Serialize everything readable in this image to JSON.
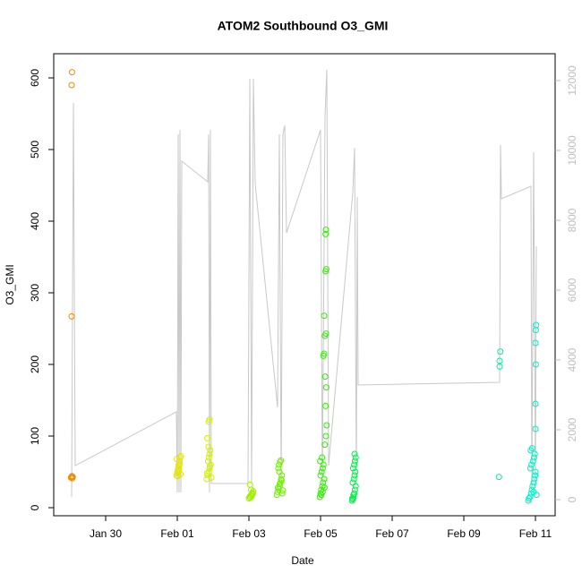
{
  "chart_data": {
    "type": "scatter",
    "title": "ATOM2 Southbound O3_GMI",
    "x_label": "Date",
    "y_label": "O3_GMI",
    "xlim": [
      28.55,
      42.55
    ],
    "xticks": [
      {
        "value": 30,
        "label": "Jan 30"
      },
      {
        "value": 32,
        "label": "Feb 01"
      },
      {
        "value": 34,
        "label": "Feb 03"
      },
      {
        "value": 36,
        "label": "Feb 05"
      },
      {
        "value": 38,
        "label": "Feb 07"
      },
      {
        "value": 40,
        "label": "Feb 09"
      },
      {
        "value": 42,
        "label": "Feb 11"
      }
    ],
    "ylim": [
      -11.25,
      633.75
    ],
    "yticks": [
      0,
      100,
      200,
      300,
      400,
      500,
      600
    ],
    "y2lim": [
      -461.5,
      12769
    ],
    "y2ticks": [
      0,
      2000,
      4000,
      6000,
      8000,
      10000,
      12000
    ],
    "y2_color": "#bebebe",
    "series": [
      {
        "type": "line",
        "axis": "y2",
        "color": "#c8c8c8",
        "x": [
          29.05,
          29.1,
          29.15,
          31.975,
          32.0,
          32.025,
          32.05,
          32.075,
          32.1,
          32.125,
          32.85,
          32.875,
          32.9,
          32.925,
          32.95,
          33.975,
          34.025,
          34.075,
          34.125,
          34.175,
          34.8,
          34.85,
          34.9,
          34.95,
          35.0,
          35.05,
          36.0,
          36.05,
          36.125,
          36.175,
          36.225,
          36.9,
          36.95,
          37.0,
          37.025,
          37.05,
          41.0,
          41.025,
          41.05,
          41.875,
          41.9,
          41.95,
          42.0,
          42.025
        ],
        "values": [
          77,
          11359,
          974,
          2513,
          205,
          10462,
          205,
          10590,
          205,
          9692,
          9103,
          10462,
          205,
          10590,
          462,
          462,
          12051,
          462,
          12051,
          9051,
          2641,
          10462,
          462,
          10462,
          10718,
          7641,
          10590,
          462,
          10974,
          12308,
          974,
          8795,
          10077,
          462,
          8667,
          3282,
          3359,
          10154,
          8615,
          8974,
          333,
          9949,
          333,
          7256
        ]
      },
      {
        "color": "#f08c00",
        "x": [
          29.03,
          29.05,
          29.06,
          29.07,
          29.08,
          29.05,
          29.05,
          29.06
        ],
        "values": [
          42,
          43,
          44,
          41,
          43,
          267,
          590,
          608
        ]
      },
      {
        "color": "#e6e600",
        "x": [
          31.98,
          32.0,
          32.02,
          32.04,
          32.06,
          32.08,
          32.1,
          32.0,
          32.03,
          32.05,
          32.07,
          31.99,
          32.01,
          32.09,
          32.04
        ],
        "values": [
          45,
          50,
          55,
          60,
          65,
          70,
          72,
          48,
          52,
          58,
          62,
          68,
          44,
          47,
          53
        ]
      },
      {
        "color": "#d2f000",
        "x": [
          32.82,
          32.85,
          32.88,
          32.9,
          32.93,
          32.86,
          32.88,
          32.9,
          32.92,
          32.87,
          32.84,
          32.88,
          32.9,
          32.95,
          32.83,
          32.91
        ],
        "values": [
          40,
          45,
          50,
          55,
          60,
          65,
          70,
          75,
          80,
          85,
          97,
          120,
          123,
          42,
          48,
          58
        ]
      },
      {
        "color": "#a0f000",
        "x": [
          34.0,
          34.02,
          34.05,
          34.08,
          34.1,
          34.12,
          34.06,
          34.03,
          34.04,
          34.07,
          34.09,
          34.11
        ],
        "values": [
          13,
          15,
          17,
          19,
          21,
          23,
          25,
          32,
          14,
          16,
          18,
          20
        ]
      },
      {
        "color": "#6ef000",
        "x": [
          34.78,
          34.8,
          34.83,
          34.86,
          34.88,
          34.9,
          34.92,
          34.85,
          34.82,
          34.84,
          34.87,
          34.89,
          34.93,
          34.95,
          34.81,
          34.86,
          34.91
        ],
        "values": [
          18,
          22,
          26,
          30,
          35,
          40,
          45,
          50,
          55,
          60,
          64,
          66,
          20,
          24,
          28,
          33,
          38
        ]
      },
      {
        "color": "#2ef000",
        "x": [
          35.98,
          36.0,
          36.02,
          36.05,
          36.07,
          36.1,
          36.0,
          36.03,
          36.06,
          36.08,
          35.99,
          36.04,
          36.12,
          36.15,
          36.17,
          36.14,
          36.16,
          36.13,
          36.08,
          36.1,
          36.12,
          36.15,
          36.1,
          36.14,
          36.16,
          36.14,
          36.15,
          36.02,
          36.06,
          36.11
        ],
        "values": [
          15,
          20,
          25,
          30,
          35,
          40,
          45,
          50,
          55,
          60,
          65,
          70,
          88,
          100,
          115,
          142,
          168,
          183,
          212,
          215,
          240,
          243,
          268,
          330,
          333,
          382,
          388,
          18,
          22,
          28
        ]
      },
      {
        "color": "#00f048",
        "x": [
          36.88,
          36.9,
          36.92,
          36.94,
          36.96,
          36.98,
          36.9,
          36.93,
          36.95,
          36.97,
          36.91,
          36.94,
          36.96,
          36.98,
          36.95,
          36.89,
          36.92
        ],
        "values": [
          10,
          12,
          15,
          20,
          25,
          30,
          35,
          40,
          45,
          50,
          55,
          60,
          65,
          70,
          75,
          13,
          18
        ]
      },
      {
        "color": "#00f0a0",
        "x": [
          40.98,
          41.0,
          41.0,
          41.02
        ],
        "values": [
          43,
          197,
          205,
          218
        ]
      },
      {
        "color": "#00f0c8",
        "x": [
          41.8,
          41.82,
          41.85,
          41.88,
          41.9,
          41.92,
          41.95,
          41.97,
          41.99,
          42.0,
          41.86,
          41.89,
          41.93,
          41.96,
          41.98,
          41.87,
          41.91,
          42.0,
          42.0,
          42.01,
          42.0,
          42.01,
          42.02,
          42.03,
          41.95
        ],
        "values": [
          10,
          13,
          15,
          20,
          25,
          30,
          35,
          40,
          45,
          50,
          55,
          60,
          65,
          70,
          75,
          80,
          83,
          110,
          145,
          200,
          230,
          248,
          255,
          18,
          22
        ]
      }
    ]
  }
}
